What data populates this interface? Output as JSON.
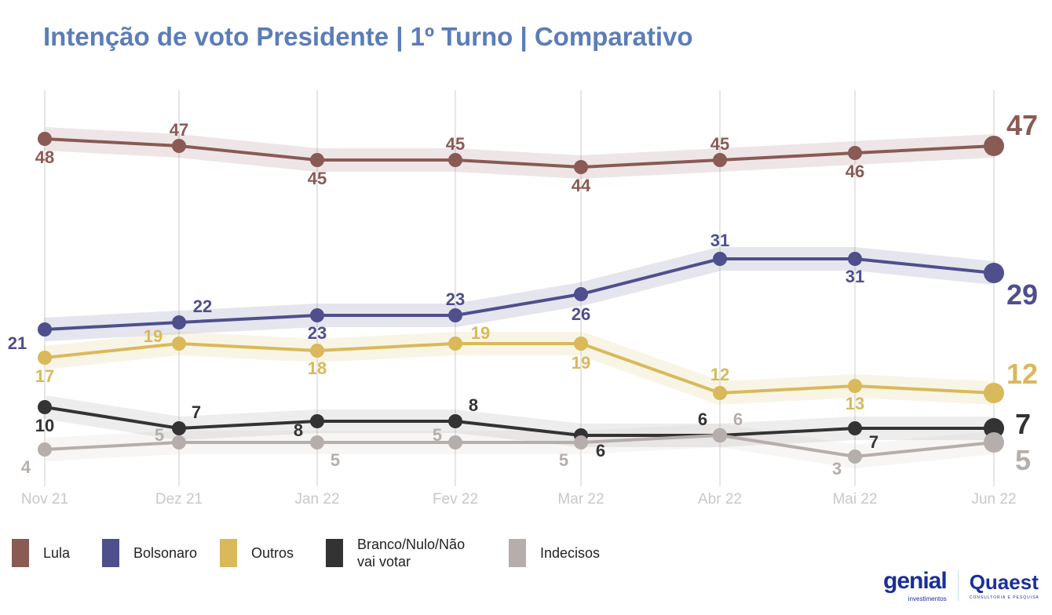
{
  "title": "Intenção de voto Presidente | 1º Turno | Comparativo",
  "chart_data": {
    "type": "line",
    "title": "Intenção de voto Presidente | 1º Turno | Comparativo",
    "categories": [
      "Nov 21",
      "Dez 21",
      "Jan 22",
      "Fev 22",
      "Mar 22",
      "Abr 22",
      "Mai 22",
      "Jun 22"
    ],
    "ylim": [
      0,
      50
    ],
    "grid": "vertical",
    "legend": "bottom",
    "series": [
      {
        "name": "Lula",
        "color": "#8a5a55",
        "values": [
          48,
          47,
          45,
          45,
          44,
          45,
          46,
          47
        ]
      },
      {
        "name": "Bolsonaro",
        "color": "#4e4f8c",
        "values": [
          21,
          22,
          23,
          23,
          26,
          31,
          31,
          29
        ]
      },
      {
        "name": "Outros",
        "color": "#d9b95a",
        "values": [
          17,
          19,
          18,
          19,
          19,
          12,
          13,
          12
        ]
      },
      {
        "name": "Branco/Nulo/Não vai votar",
        "color": "#333333",
        "values": [
          10,
          7,
          8,
          8,
          6,
          6,
          7,
          7
        ]
      },
      {
        "name": "Indecisos",
        "color": "#b6aeab",
        "values": [
          4,
          5,
          5,
          5,
          5,
          6,
          3,
          5
        ]
      }
    ]
  },
  "legend": [
    "Lula",
    "Bolsonaro",
    "Outros",
    "Branco/Nulo/Não vai votar",
    "Indecisos"
  ],
  "logos": {
    "genial": "genial",
    "genial_sub": "investimentos",
    "quaest": "Quaest",
    "quaest_sub": "CONSULTORIA E PESQUISA"
  }
}
